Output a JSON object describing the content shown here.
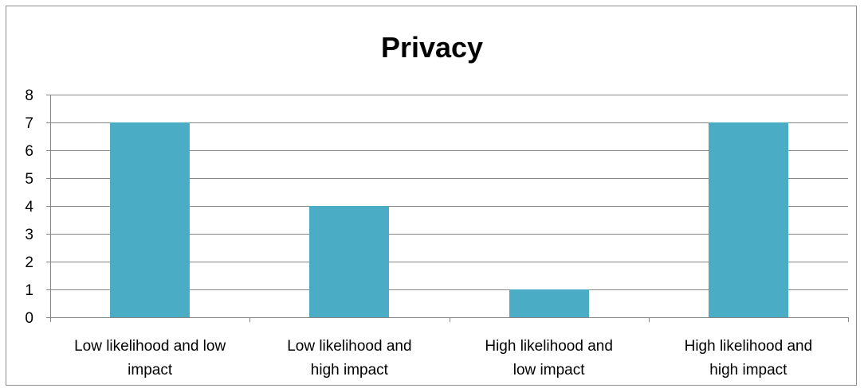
{
  "chart_data": {
    "type": "bar",
    "title": "Privacy",
    "categories": [
      [
        "Low likelihood and low",
        "impact"
      ],
      [
        "Low likelihood and",
        "high impact"
      ],
      [
        "High likelihood and",
        "low impact"
      ],
      [
        "High likelihood and",
        "high impact"
      ]
    ],
    "values": [
      7,
      4,
      1,
      7
    ],
    "ylim": [
      0,
      8
    ],
    "yticks": [
      0,
      1,
      2,
      3,
      4,
      5,
      6,
      7,
      8
    ],
    "grid": true,
    "legend": "none",
    "bar_color": "#4bacc6",
    "grid_color": "#868686",
    "axis_color": "#868686"
  }
}
